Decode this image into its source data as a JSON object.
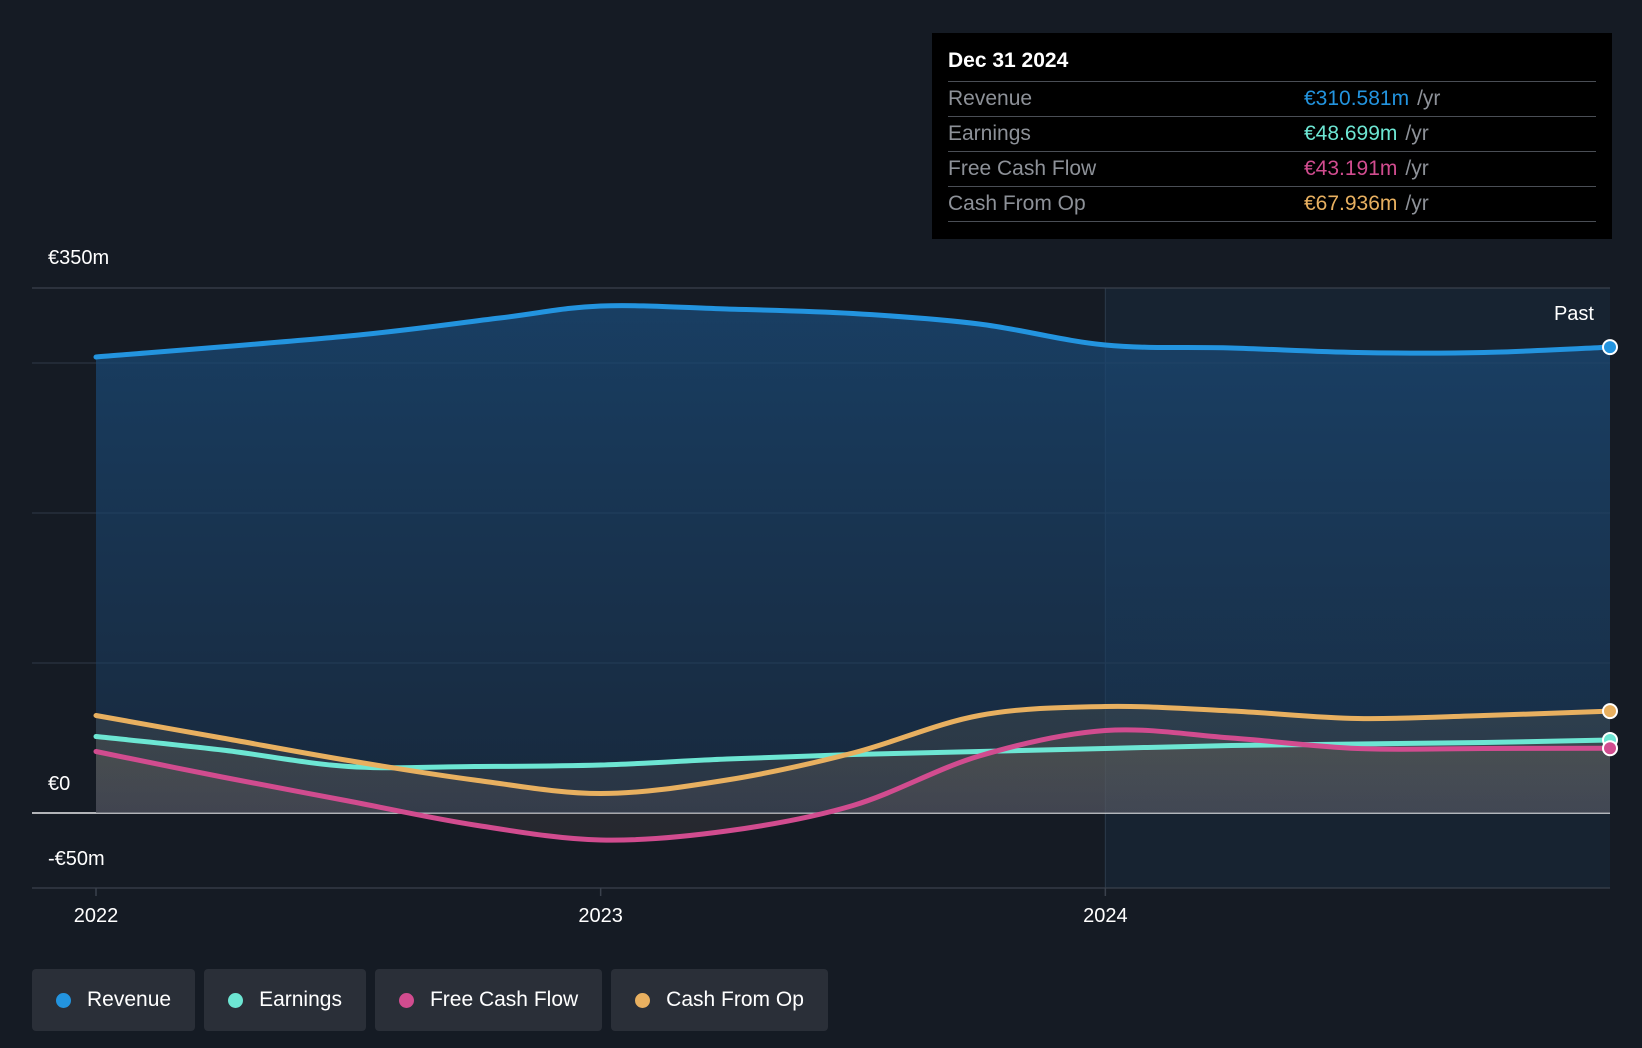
{
  "tooltip": {
    "date": "Dec 31 2024",
    "rows": [
      {
        "label": "Revenue",
        "value": "€310.581m",
        "unit": "/yr",
        "color": "#2394df"
      },
      {
        "label": "Earnings",
        "value": "€48.699m",
        "unit": "/yr",
        "color": "#6de6d3"
      },
      {
        "label": "Free Cash Flow",
        "value": "€43.191m",
        "unit": "/yr",
        "color": "#d14c8f"
      },
      {
        "label": "Cash From Op",
        "value": "€67.936m",
        "unit": "/yr",
        "color": "#e8b060"
      }
    ]
  },
  "legend": [
    {
      "label": "Revenue",
      "color": "#2394df"
    },
    {
      "label": "Earnings",
      "color": "#6de6d3"
    },
    {
      "label": "Free Cash Flow",
      "color": "#d14c8f"
    },
    {
      "label": "Cash From Op",
      "color": "#e8b060"
    }
  ],
  "chart_data": {
    "type": "line",
    "past_label": "Past",
    "y_tick_labels": [
      {
        "value": 350,
        "label": "€350m"
      },
      {
        "value": 0,
        "label": "€0"
      },
      {
        "value": -50,
        "label": "-€50m"
      }
    ],
    "x_tick_labels": [
      {
        "value": 2022,
        "label": "2022"
      },
      {
        "value": 2023,
        "label": "2023"
      },
      {
        "value": 2024,
        "label": "2024"
      }
    ],
    "ylim": [
      -50,
      350
    ],
    "xlim": [
      2021.87,
      2025.0
    ],
    "grid": true,
    "past_region_start": 2024.0,
    "series": [
      {
        "name": "Revenue",
        "color": "#2394df",
        "x": [
          2022.0,
          2022.5,
          2022.8,
          2023.0,
          2023.25,
          2023.5,
          2023.75,
          2024.0,
          2024.25,
          2024.5,
          2024.75,
          2025.0
        ],
        "y": [
          304,
          318,
          330,
          338,
          336,
          333,
          326,
          312,
          310,
          307,
          307,
          310.6
        ]
      },
      {
        "name": "Earnings",
        "color": "#6de6d3",
        "x": [
          2022.0,
          2022.25,
          2022.5,
          2022.75,
          2023.0,
          2023.25,
          2023.5,
          2023.75,
          2024.0,
          2024.25,
          2024.5,
          2024.75,
          2025.0
        ],
        "y": [
          51,
          42,
          31,
          31,
          32,
          36,
          39,
          41,
          43,
          45,
          46,
          47,
          48.7
        ]
      },
      {
        "name": "Free Cash Flow",
        "color": "#d14c8f",
        "x": [
          2022.0,
          2022.25,
          2022.5,
          2022.75,
          2023.0,
          2023.25,
          2023.5,
          2023.75,
          2024.0,
          2024.25,
          2024.5,
          2024.75,
          2025.0
        ],
        "y": [
          41,
          24,
          8,
          -8,
          -18,
          -12,
          5,
          38,
          55,
          50,
          43,
          43,
          43.2
        ]
      },
      {
        "name": "Cash From Op",
        "color": "#e8b060",
        "x": [
          2022.0,
          2022.25,
          2022.5,
          2022.75,
          2023.0,
          2023.25,
          2023.5,
          2023.75,
          2024.0,
          2024.25,
          2024.5,
          2024.75,
          2025.0
        ],
        "y": [
          65,
          50,
          35,
          22,
          13,
          22,
          40,
          65,
          71,
          68,
          63,
          65,
          67.9
        ]
      }
    ]
  }
}
